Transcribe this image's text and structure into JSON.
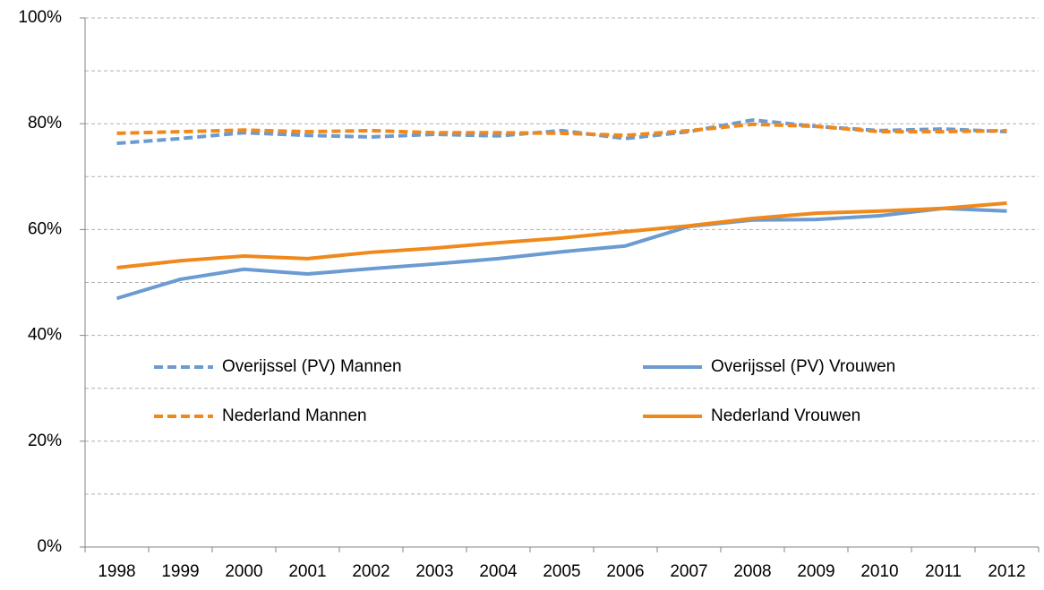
{
  "chart_data": {
    "type": "line",
    "categories": [
      "1998",
      "1999",
      "2000",
      "2001",
      "2002",
      "2003",
      "2004",
      "2005",
      "2006",
      "2007",
      "2008",
      "2009",
      "2010",
      "2011",
      "2012"
    ],
    "series": [
      {
        "name": "Overijssel (PV) Mannen",
        "color": "#6b9bd1",
        "dashed": true,
        "values": [
          76.3,
          77.2,
          78.3,
          77.8,
          77.5,
          78.0,
          77.7,
          78.7,
          77.2,
          78.5,
          80.7,
          79.5,
          78.7,
          79.0,
          78.5
        ]
      },
      {
        "name": "Overijssel (PV) Vrouwen",
        "color": "#6b9bd1",
        "dashed": false,
        "values": [
          47.0,
          50.6,
          52.5,
          51.6,
          52.6,
          53.5,
          54.5,
          55.8,
          56.9,
          60.6,
          61.8,
          61.9,
          62.6,
          64.0,
          63.5
        ]
      },
      {
        "name": "Nederland Mannen",
        "color": "#f0891c",
        "dashed": true,
        "values": [
          78.2,
          78.5,
          78.8,
          78.5,
          78.7,
          78.3,
          78.3,
          78.2,
          77.8,
          78.7,
          79.9,
          79.5,
          78.5,
          78.5,
          78.7
        ]
      },
      {
        "name": "Nederland Vrouwen",
        "color": "#f0891c",
        "dashed": false,
        "values": [
          52.8,
          54.1,
          55.0,
          54.5,
          55.7,
          56.5,
          57.5,
          58.4,
          59.6,
          60.7,
          62.1,
          63.1,
          63.5,
          64.0,
          65.0
        ]
      }
    ],
    "ylim": [
      0,
      100
    ],
    "yticks": [
      {
        "value": 0,
        "label": "0%"
      },
      {
        "value": 20,
        "label": "20%"
      },
      {
        "value": 40,
        "label": "40%"
      },
      {
        "value": 60,
        "label": "60%"
      },
      {
        "value": 80,
        "label": "80%"
      },
      {
        "value": 100,
        "label": "100%"
      }
    ],
    "grid_lines": [
      10,
      20,
      30,
      40,
      50,
      60,
      70,
      80,
      90,
      100
    ],
    "grid": true,
    "legend": "center"
  }
}
